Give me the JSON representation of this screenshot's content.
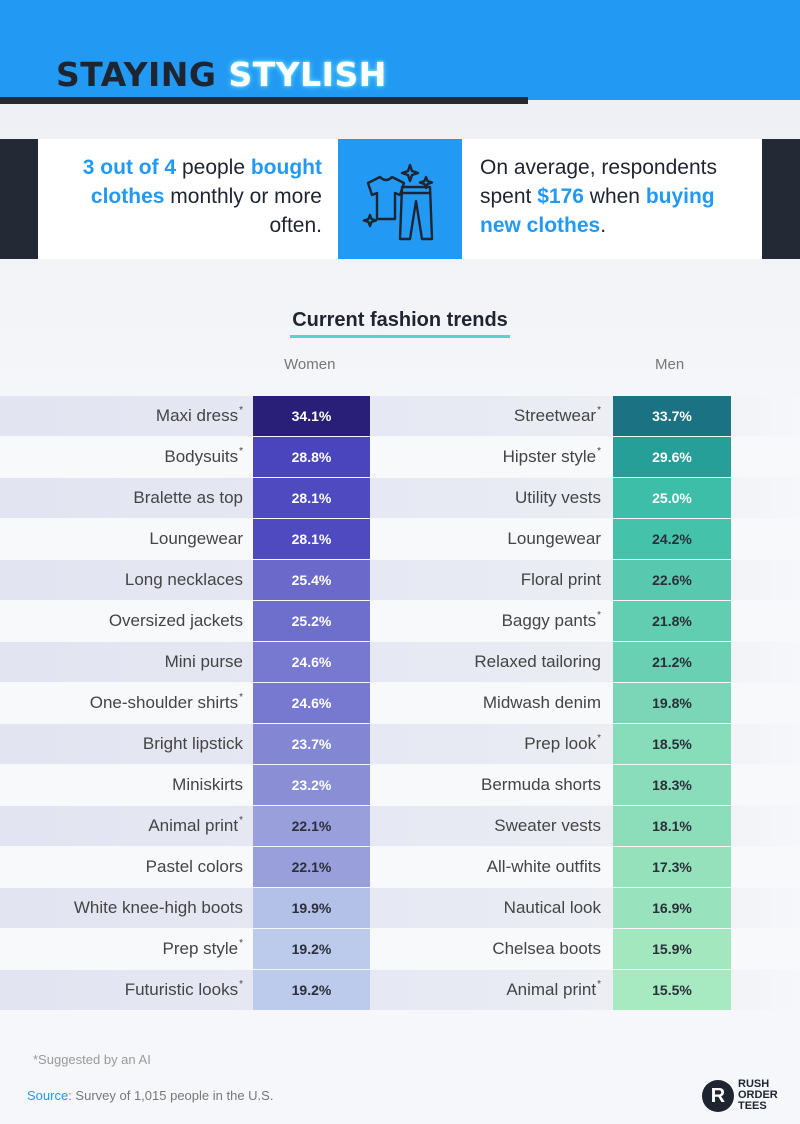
{
  "header": {
    "title_part1": "STAYING",
    "title_part2": "STYLISH"
  },
  "stats": {
    "left": {
      "part1": "3 out of 4",
      "part2": " people ",
      "part3": "bought clothes",
      "part4": " monthly or more often."
    },
    "icon": "clothes-sparkle-icon",
    "right": {
      "part1": "On average, respondents spent ",
      "part2": "$176",
      "part3": " when ",
      "part4": "buying new clothes",
      "part5": "."
    }
  },
  "chart_data": {
    "type": "table",
    "title": "Current fashion trends",
    "columns": [
      "Women",
      "Men"
    ],
    "women": [
      {
        "label": "Maxi dress",
        "ai": true,
        "value": "34.1%",
        "pct": 34.1
      },
      {
        "label": "Bodysuits",
        "ai": true,
        "value": "28.8%",
        "pct": 28.8
      },
      {
        "label": "Bralette as top",
        "ai": false,
        "value": "28.1%",
        "pct": 28.1
      },
      {
        "label": "Loungewear",
        "ai": false,
        "value": "28.1%",
        "pct": 28.1
      },
      {
        "label": "Long necklaces",
        "ai": false,
        "value": "25.4%",
        "pct": 25.4
      },
      {
        "label": "Oversized jackets",
        "ai": false,
        "value": "25.2%",
        "pct": 25.2
      },
      {
        "label": "Mini purse",
        "ai": false,
        "value": "24.6%",
        "pct": 24.6
      },
      {
        "label": "One-shoulder shirts",
        "ai": true,
        "value": "24.6%",
        "pct": 24.6
      },
      {
        "label": "Bright lipstick",
        "ai": false,
        "value": "23.7%",
        "pct": 23.7
      },
      {
        "label": "Miniskirts",
        "ai": false,
        "value": "23.2%",
        "pct": 23.2
      },
      {
        "label": "Animal print",
        "ai": true,
        "value": "22.1%",
        "pct": 22.1
      },
      {
        "label": "Pastel colors",
        "ai": false,
        "value": "22.1%",
        "pct": 22.1
      },
      {
        "label": "White knee-high boots",
        "ai": false,
        "value": "19.9%",
        "pct": 19.9
      },
      {
        "label": "Prep style",
        "ai": true,
        "value": "19.2%",
        "pct": 19.2
      },
      {
        "label": "Futuristic looks",
        "ai": true,
        "value": "19.2%",
        "pct": 19.2
      }
    ],
    "men": [
      {
        "label": "Streetwear",
        "ai": true,
        "value": "33.7%",
        "pct": 33.7
      },
      {
        "label": "Hipster style",
        "ai": true,
        "value": "29.6%",
        "pct": 29.6
      },
      {
        "label": "Utility vests",
        "ai": false,
        "value": "25.0%",
        "pct": 25.0
      },
      {
        "label": "Loungewear",
        "ai": false,
        "value": "24.2%",
        "pct": 24.2
      },
      {
        "label": "Floral print",
        "ai": false,
        "value": "22.6%",
        "pct": 22.6
      },
      {
        "label": "Baggy pants",
        "ai": true,
        "value": "21.8%",
        "pct": 21.8
      },
      {
        "label": "Relaxed tailoring",
        "ai": false,
        "value": "21.2%",
        "pct": 21.2
      },
      {
        "label": "Midwash denim",
        "ai": false,
        "value": "19.8%",
        "pct": 19.8
      },
      {
        "label": "Prep look",
        "ai": true,
        "value": "18.5%",
        "pct": 18.5
      },
      {
        "label": "Bermuda shorts",
        "ai": false,
        "value": "18.3%",
        "pct": 18.3
      },
      {
        "label": "Sweater vests",
        "ai": false,
        "value": "18.1%",
        "pct": 18.1
      },
      {
        "label": "All-white outfits",
        "ai": false,
        "value": "17.3%",
        "pct": 17.3
      },
      {
        "label": "Nautical look",
        "ai": false,
        "value": "16.9%",
        "pct": 16.9
      },
      {
        "label": "Chelsea boots",
        "ai": false,
        "value": "15.9%",
        "pct": 15.9
      },
      {
        "label": "Animal print",
        "ai": true,
        "value": "15.5%",
        "pct": 15.5
      }
    ],
    "women_color_scale": [
      "#2a1f78",
      "#3e36b6",
      "#5a56c6",
      "#8e93d6",
      "#bccbec"
    ],
    "men_color_scale": [
      "#1a7282",
      "#27a49a",
      "#3fc0a9",
      "#77d5b6",
      "#a7e9c0"
    ],
    "marker": "*"
  },
  "footer": {
    "note": "*Suggested by an AI",
    "source_label": "Source:",
    "source_text": " Survey of 1,015 people in the U.S.",
    "logo_mark": "R",
    "logo_line1": "RUSH",
    "logo_line2": "ORDER",
    "logo_line3": "TEES"
  }
}
